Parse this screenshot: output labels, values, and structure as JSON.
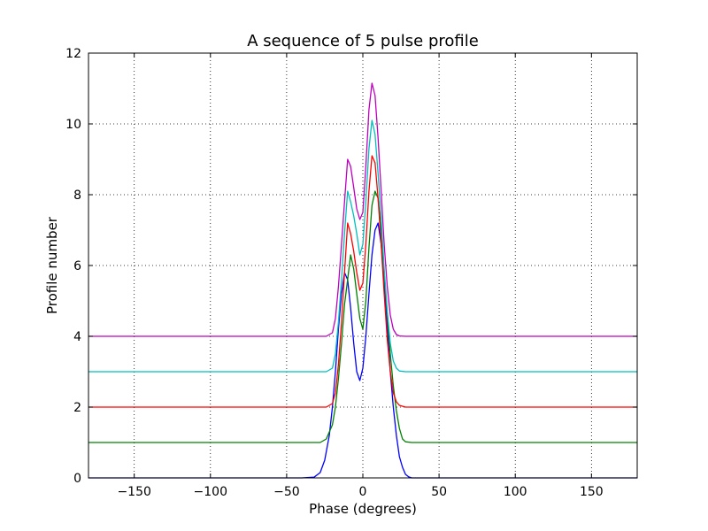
{
  "chart_data": {
    "type": "line",
    "title": "A sequence of 5 pulse profile",
    "xlabel": "Phase (degrees)",
    "ylabel": "Profile number",
    "xlim": [
      -180,
      180
    ],
    "ylim": [
      0,
      12
    ],
    "xticks": [
      -150,
      -100,
      -50,
      0,
      50,
      100,
      150
    ],
    "xtick_labels": [
      "−150",
      "−100",
      "−50",
      "0",
      "50",
      "100",
      "150"
    ],
    "yticks": [
      0,
      2,
      4,
      6,
      8,
      10,
      12
    ],
    "ytick_labels": [
      "0",
      "2",
      "4",
      "6",
      "8",
      "10",
      "12"
    ],
    "grid": true,
    "series": [
      {
        "color": "#0000ff",
        "offset": 0,
        "x": [
          -180,
          -40,
          -32,
          -28,
          -25,
          -22,
          -20,
          -18,
          -16,
          -14,
          -12,
          -10,
          -8,
          -6,
          -4,
          -2,
          0,
          2,
          4,
          6,
          8,
          10,
          12,
          14,
          16,
          18,
          20,
          22,
          24,
          26,
          28,
          30,
          32,
          36,
          180
        ],
        "values": [
          0,
          0,
          0.02,
          0.15,
          0.5,
          1.2,
          2.0,
          3.0,
          4.2,
          5.2,
          5.8,
          5.6,
          4.8,
          3.8,
          3.0,
          2.75,
          3.1,
          4.0,
          5.2,
          6.3,
          7.0,
          7.2,
          6.6,
          5.6,
          4.3,
          3.0,
          2.0,
          1.2,
          0.6,
          0.3,
          0.1,
          0.03,
          0,
          0,
          0
        ]
      },
      {
        "color": "#008000",
        "offset": 1,
        "x": [
          -180,
          -28,
          -24,
          -20,
          -18,
          -16,
          -14,
          -12,
          -10,
          -8,
          -6,
          -4,
          -2,
          0,
          2,
          4,
          6,
          8,
          10,
          12,
          14,
          16,
          18,
          20,
          22,
          24,
          26,
          28,
          32,
          180
        ],
        "values": [
          1,
          1,
          1.1,
          1.5,
          2.0,
          2.8,
          3.8,
          4.9,
          5.6,
          6.3,
          5.9,
          5.2,
          4.5,
          4.2,
          5.0,
          6.5,
          7.7,
          8.1,
          7.9,
          7.0,
          5.8,
          4.6,
          3.5,
          2.6,
          1.9,
          1.4,
          1.1,
          1.02,
          1,
          1
        ]
      },
      {
        "color": "#ff0000",
        "offset": 2,
        "x": [
          -180,
          -24,
          -20,
          -18,
          -16,
          -14,
          -12,
          -10,
          -8,
          -6,
          -4,
          -2,
          0,
          2,
          4,
          6,
          8,
          10,
          12,
          14,
          16,
          18,
          20,
          22,
          24,
          28,
          180
        ],
        "values": [
          2,
          2,
          2.1,
          2.4,
          3.2,
          4.4,
          5.8,
          7.2,
          6.9,
          6.4,
          5.8,
          5.3,
          5.5,
          6.6,
          8.1,
          9.1,
          8.9,
          7.9,
          6.6,
          5.2,
          3.9,
          3.0,
          2.4,
          2.15,
          2.05,
          2,
          2
        ]
      },
      {
        "color": "#00bfbf",
        "offset": 3,
        "x": [
          -180,
          -24,
          -20,
          -18,
          -16,
          -14,
          -12,
          -10,
          -8,
          -6,
          -4,
          -2,
          0,
          2,
          4,
          6,
          8,
          10,
          12,
          14,
          16,
          18,
          20,
          22,
          24,
          28,
          180
        ],
        "values": [
          3,
          3,
          3.1,
          3.5,
          4.4,
          5.6,
          6.9,
          8.1,
          7.8,
          7.4,
          6.9,
          6.3,
          6.6,
          7.8,
          9.3,
          10.1,
          9.7,
          8.6,
          7.3,
          5.9,
          4.7,
          3.8,
          3.3,
          3.1,
          3.02,
          3,
          3
        ]
      },
      {
        "color": "#bf00bf",
        "offset": 4,
        "x": [
          -180,
          -24,
          -20,
          -18,
          -16,
          -14,
          -12,
          -10,
          -8,
          -6,
          -4,
          -2,
          0,
          2,
          4,
          6,
          8,
          10,
          12,
          14,
          16,
          18,
          20,
          22,
          24,
          28,
          180
        ],
        "values": [
          4,
          4,
          4.1,
          4.5,
          5.4,
          6.6,
          7.8,
          9.0,
          8.8,
          8.2,
          7.6,
          7.3,
          7.5,
          8.8,
          10.4,
          11.15,
          10.8,
          9.6,
          8.1,
          6.6,
          5.4,
          4.6,
          4.2,
          4.05,
          4.01,
          4,
          4
        ]
      }
    ]
  }
}
